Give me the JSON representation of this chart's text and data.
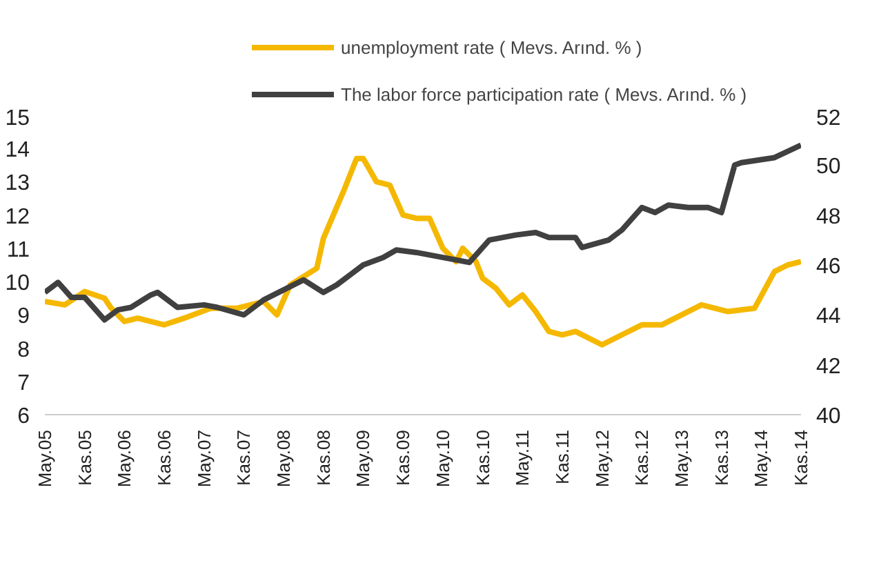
{
  "chart_data": {
    "type": "line",
    "legend": "top",
    "grid": false,
    "xlim": [
      "2005-05",
      "2014-11"
    ],
    "xticks": [
      {
        "value": "2005-05",
        "label": "May.05"
      },
      {
        "value": "2005-11",
        "label": "Kas.05"
      },
      {
        "value": "2006-05",
        "label": "May.06"
      },
      {
        "value": "2006-11",
        "label": "Kas.06"
      },
      {
        "value": "2007-05",
        "label": "May.07"
      },
      {
        "value": "2007-11",
        "label": "Kas.07"
      },
      {
        "value": "2008-05",
        "label": "May.08"
      },
      {
        "value": "2008-11",
        "label": "Kas.08"
      },
      {
        "value": "2009-05",
        "label": "May.09"
      },
      {
        "value": "2009-11",
        "label": "Kas.09"
      },
      {
        "value": "2010-05",
        "label": "May.10"
      },
      {
        "value": "2010-11",
        "label": "Kas.10"
      },
      {
        "value": "2011-05",
        "label": "May.11"
      },
      {
        "value": "2011-11",
        "label": "Kas.11"
      },
      {
        "value": "2012-05",
        "label": "May.12"
      },
      {
        "value": "2012-11",
        "label": "Kas.12"
      },
      {
        "value": "2013-05",
        "label": "May.13"
      },
      {
        "value": "2013-11",
        "label": "Kas.13"
      },
      {
        "value": "2014-05",
        "label": "May.14"
      },
      {
        "value": "2014-11",
        "label": "Kas.14"
      }
    ],
    "ylim": [
      6,
      15
    ],
    "yticks": [
      6,
      7,
      8,
      9,
      10,
      11,
      12,
      13,
      14,
      15
    ],
    "y2lim": [
      40,
      52
    ],
    "y2ticks": [
      40,
      42,
      44,
      46,
      48,
      50,
      52
    ],
    "series": [
      {
        "name": "unemployment rate ( Mevs. Arınd. % )",
        "color": "#f5b800",
        "x": [
          "2005-05",
          "2005-08",
          "2005-11",
          "2006-02",
          "2006-03",
          "2006-05",
          "2006-07",
          "2006-11",
          "2007-02",
          "2007-06",
          "2007-10",
          "2008-02",
          "2008-04",
          "2008-06",
          "2008-10",
          "2008-11",
          "2009-02",
          "2009-04",
          "2009-05",
          "2009-07",
          "2009-09",
          "2009-11",
          "2010-01",
          "2010-03",
          "2010-05",
          "2010-07",
          "2010-08",
          "2010-10",
          "2010-11",
          "2011-01",
          "2011-03",
          "2011-05",
          "2011-07",
          "2011-09",
          "2011-11",
          "2012-01",
          "2012-05",
          "2012-08",
          "2012-11",
          "2013-02",
          "2013-05",
          "2013-08",
          "2013-12",
          "2014-04",
          "2014-07",
          "2014-09",
          "2014-11"
        ],
        "values": [
          9.4,
          9.3,
          9.7,
          9.5,
          9.2,
          8.8,
          8.9,
          8.7,
          8.9,
          9.2,
          9.2,
          9.4,
          9.0,
          9.9,
          10.4,
          11.3,
          12.7,
          13.7,
          13.7,
          13.0,
          12.9,
          12.0,
          11.9,
          11.9,
          11.0,
          10.6,
          11.0,
          10.6,
          10.1,
          9.8,
          9.3,
          9.6,
          9.1,
          8.5,
          8.4,
          8.5,
          8.1,
          8.4,
          8.7,
          8.7,
          9.0,
          9.3,
          9.1,
          9.2,
          10.3,
          10.5,
          10.6
        ]
      },
      {
        "name": "The labor force participation rate ( Mevs. Arınd. % )",
        "color": "#404040",
        "axis": "y2",
        "x": [
          "2005-05",
          "2005-07",
          "2005-09",
          "2005-11",
          "2006-02",
          "2006-04",
          "2006-06",
          "2006-09",
          "2006-10",
          "2007-01",
          "2007-05",
          "2007-07",
          "2007-11",
          "2008-02",
          "2008-05",
          "2008-08",
          "2008-11",
          "2009-01",
          "2009-05",
          "2009-08",
          "2009-10",
          "2010-01",
          "2010-05",
          "2010-09",
          "2010-12",
          "2011-04",
          "2011-07",
          "2011-09",
          "2012-01",
          "2012-02",
          "2012-06",
          "2012-08",
          "2012-11",
          "2013-01",
          "2013-03",
          "2013-06",
          "2013-09",
          "2013-11",
          "2014-01",
          "2014-02",
          "2014-07",
          "2014-11"
        ],
        "values": [
          44.9,
          45.3,
          44.7,
          44.7,
          43.8,
          44.2,
          44.3,
          44.8,
          44.9,
          44.3,
          44.4,
          44.3,
          44.0,
          44.6,
          45.0,
          45.4,
          44.9,
          45.2,
          46.0,
          46.3,
          46.6,
          46.5,
          46.3,
          46.1,
          47.0,
          47.2,
          47.3,
          47.1,
          47.1,
          46.7,
          47.0,
          47.4,
          48.3,
          48.1,
          48.4,
          48.3,
          48.3,
          48.1,
          50.0,
          50.1,
          50.3,
          50.8
        ]
      }
    ]
  }
}
